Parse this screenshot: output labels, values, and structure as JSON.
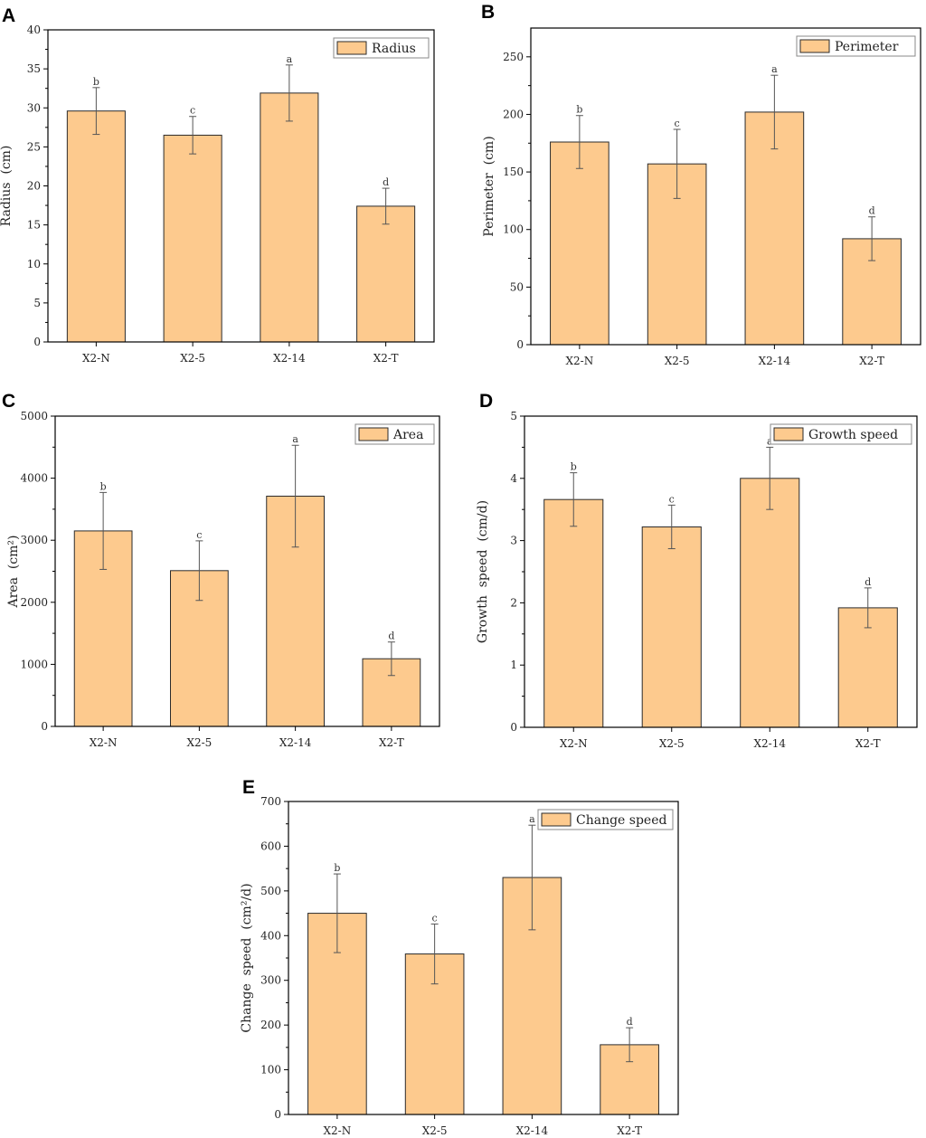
{
  "chart_data": [
    {
      "panel": "A",
      "type": "bar",
      "categories": [
        "X2-N",
        "X2-5",
        "X2-14",
        "X2-T"
      ],
      "series": [
        {
          "name": "Radius",
          "values": [
            29.6,
            26.5,
            31.9,
            17.4
          ],
          "errors": [
            3.0,
            2.4,
            3.6,
            2.3
          ],
          "labels": [
            "b",
            "c",
            "a",
            "d"
          ]
        }
      ],
      "ylabel": "Radius  (cm)",
      "ylim": [
        0,
        40
      ],
      "yticks": [
        0,
        5,
        10,
        15,
        20,
        25,
        30,
        35,
        40
      ],
      "legend_position": "top-right"
    },
    {
      "panel": "B",
      "type": "bar",
      "categories": [
        "X2-N",
        "X2-5",
        "X2-14",
        "X2-T"
      ],
      "series": [
        {
          "name": "Perimeter",
          "values": [
            176,
            157,
            202,
            92
          ],
          "errors": [
            23,
            30,
            32,
            19
          ],
          "labels": [
            "b",
            "c",
            "a",
            "d"
          ]
        }
      ],
      "ylabel": "Perimeter  (cm)",
      "ylim": [
        0,
        275
      ],
      "yticks": [
        0,
        50,
        100,
        150,
        200,
        250
      ],
      "legend_position": "top-right"
    },
    {
      "panel": "C",
      "type": "bar",
      "categories": [
        "X2-N",
        "X2-5",
        "X2-14",
        "X2-T"
      ],
      "series": [
        {
          "name": "Area",
          "values": [
            3150,
            2510,
            3710,
            1090
          ],
          "errors": [
            620,
            480,
            820,
            270
          ],
          "labels": [
            "b",
            "c",
            "a",
            "d"
          ]
        }
      ],
      "ylabel": "Area  (cm²)",
      "ylim": [
        0,
        5000
      ],
      "yticks": [
        0,
        1000,
        2000,
        3000,
        4000,
        5000
      ],
      "legend_position": "top-right"
    },
    {
      "panel": "D",
      "type": "bar",
      "categories": [
        "X2-N",
        "X2-5",
        "X2-14",
        "X2-T"
      ],
      "series": [
        {
          "name": "Growth speed",
          "values": [
            3.66,
            3.22,
            4.0,
            1.92
          ],
          "errors": [
            0.43,
            0.35,
            0.5,
            0.32
          ],
          "labels": [
            "b",
            "c",
            "a",
            "d"
          ]
        }
      ],
      "ylabel": "Growth  speed  (cm/d)",
      "ylim": [
        0,
        5
      ],
      "yticks": [
        0,
        1,
        2,
        3,
        4,
        5
      ],
      "legend_position": "top-right"
    },
    {
      "panel": "E",
      "type": "bar",
      "categories": [
        "X2-N",
        "X2-5",
        "X2-14",
        "X2-T"
      ],
      "series": [
        {
          "name": "Change speed",
          "values": [
            450,
            359,
            530,
            156
          ],
          "errors": [
            88,
            67,
            117,
            38
          ],
          "labels": [
            "b",
            "c",
            "a",
            "d"
          ]
        }
      ],
      "ylabel": "Change  speed  (cm²/d)",
      "ylim": [
        0,
        700
      ],
      "yticks": [
        0,
        100,
        200,
        300,
        400,
        500,
        600,
        700
      ],
      "legend_position": "top-right"
    }
  ],
  "colors": {
    "bar_fill": "#fdca8e",
    "bar_edge": "#2b2b2b"
  }
}
